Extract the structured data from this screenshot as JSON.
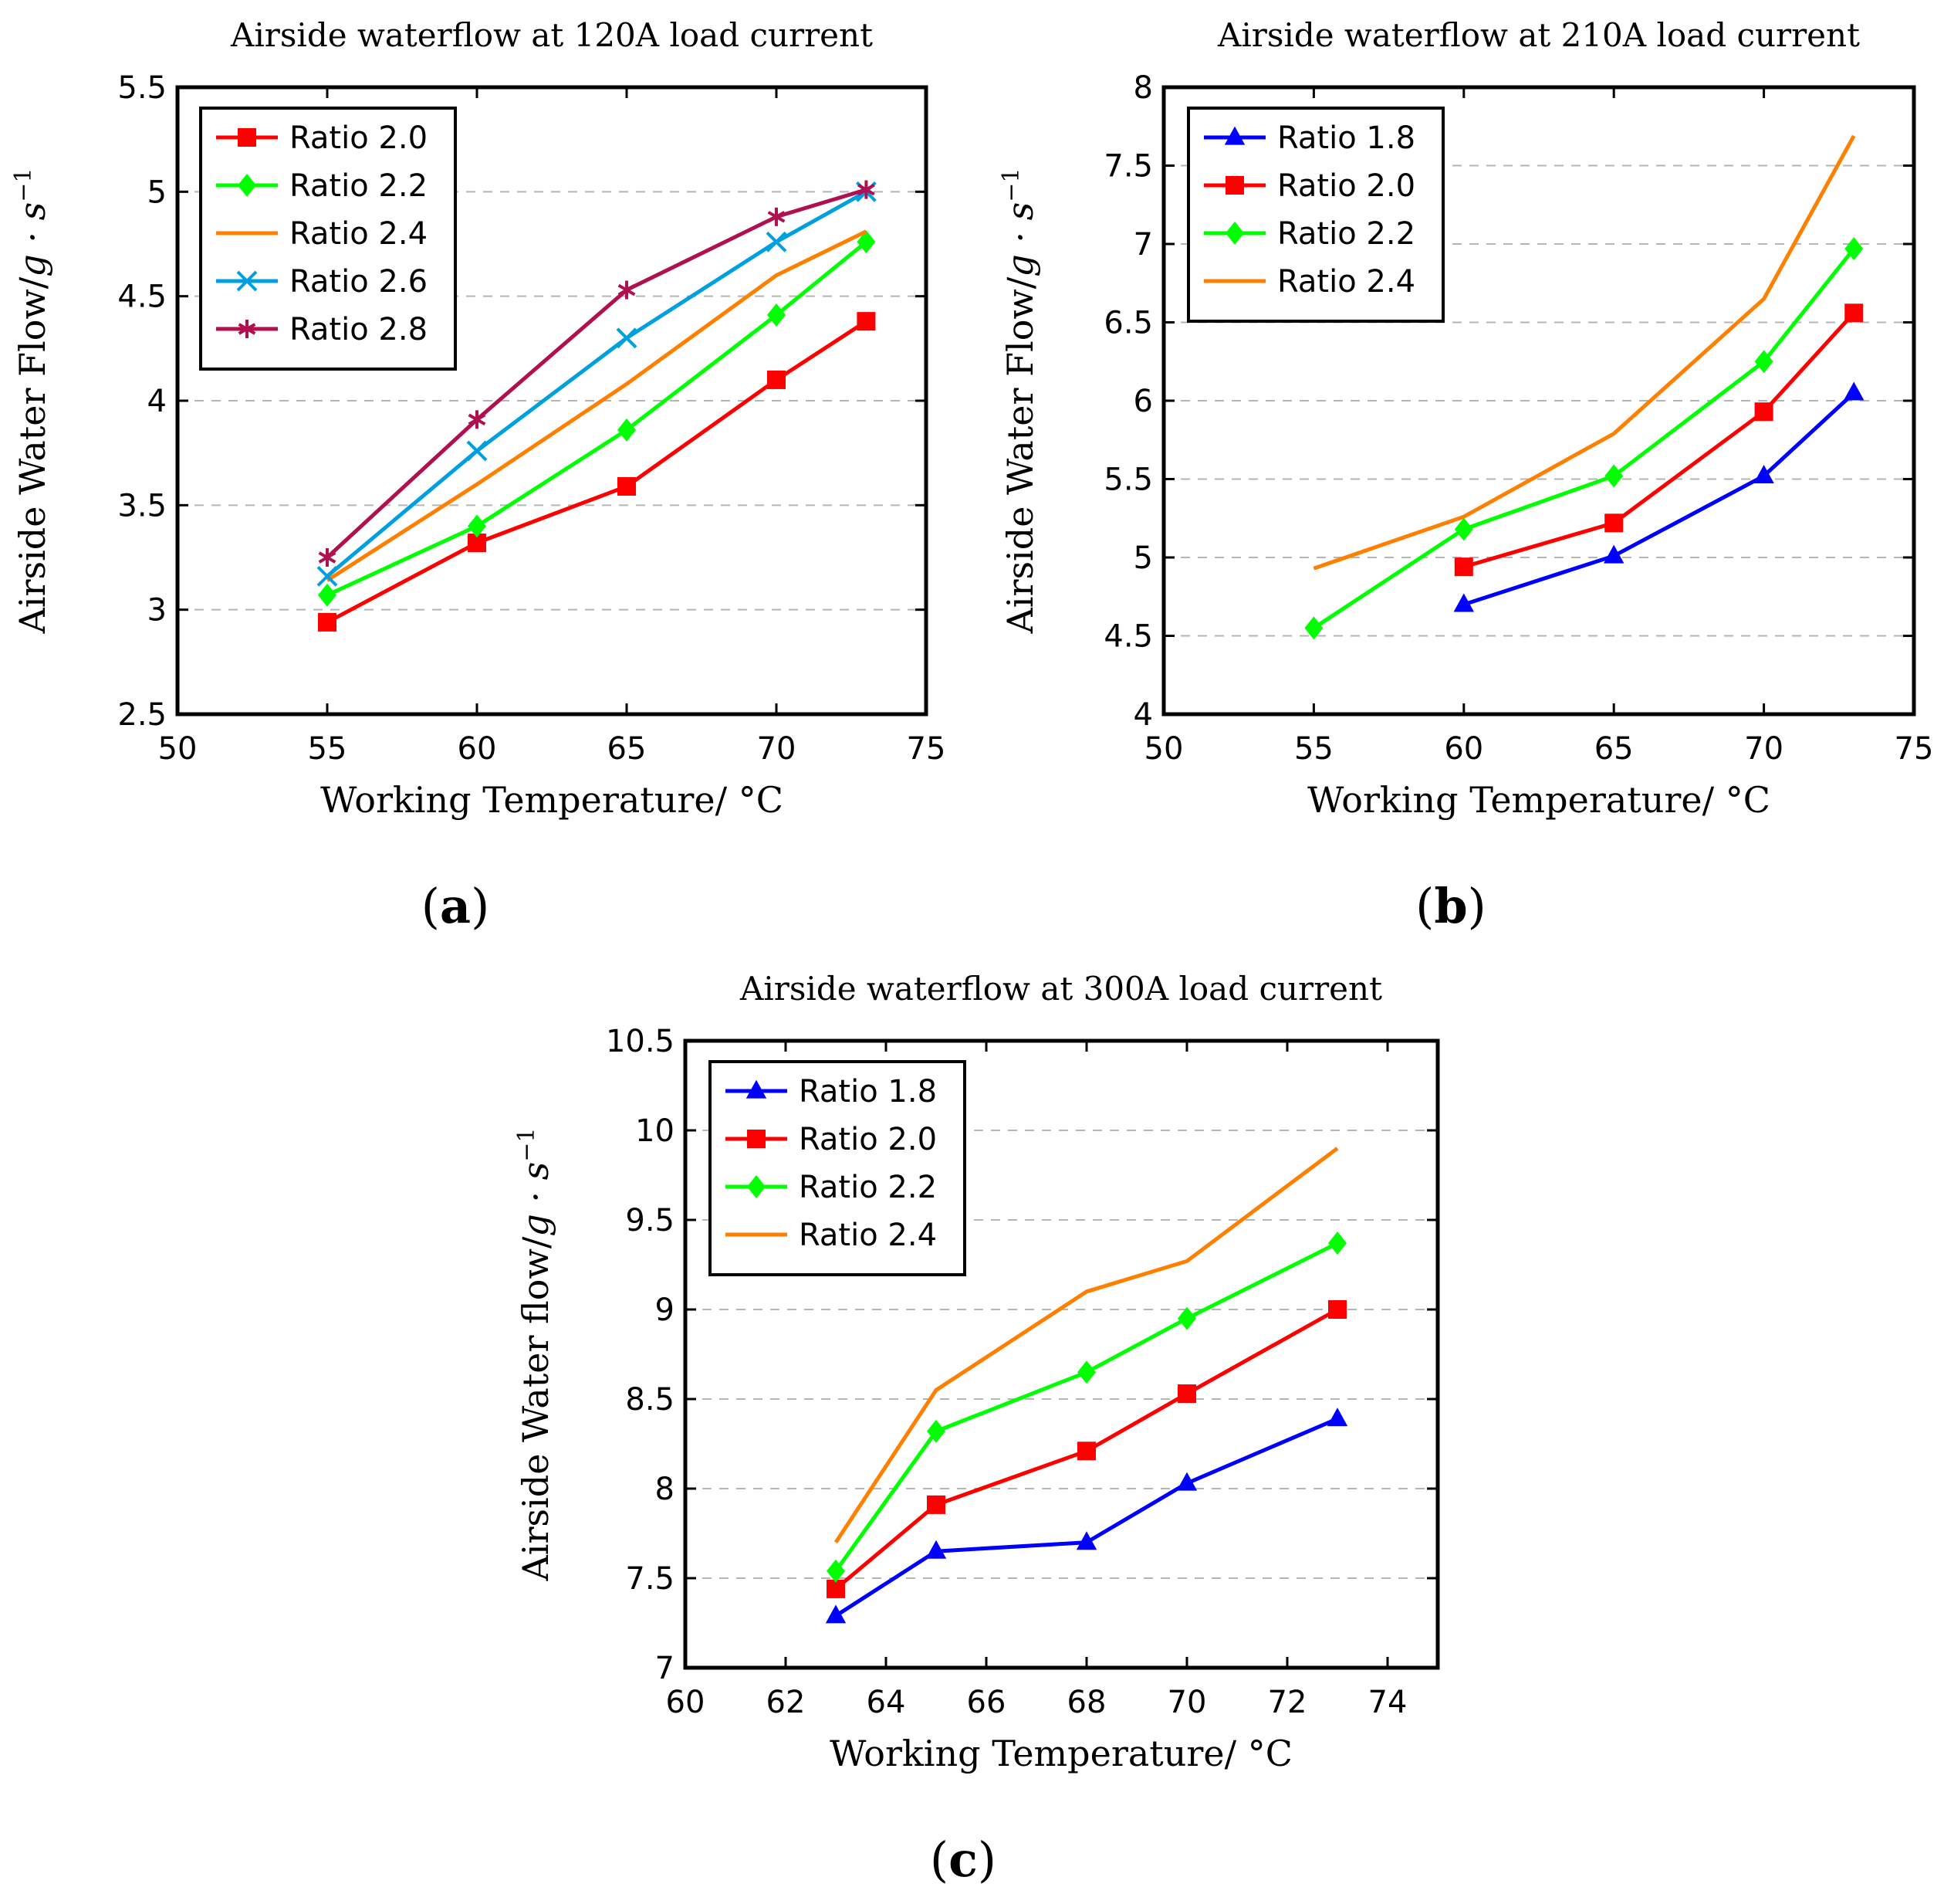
{
  "figure": {
    "panel_labels": [
      {
        "letter": "a"
      },
      {
        "letter": "b"
      },
      {
        "letter": "c"
      }
    ]
  },
  "colors": {
    "ratio_1_8": "#0000ff",
    "ratio_2_0": "#ff0000",
    "ratio_2_2": "#00ff00",
    "ratio_2_4": "#ff8000",
    "ratio_2_6": "#00a0e0",
    "ratio_2_8": "#b01050"
  },
  "chart_data": [
    {
      "id": "a",
      "type": "line",
      "title": "Airside waterflow at 120A load current",
      "xlabel": "Working Temperature/ °C",
      "ylabel_prefix": "Airside Water Flow/",
      "ylabel_math": "g · s",
      "ylabel_exp": "−1",
      "xlim": [
        50,
        75
      ],
      "ylim": [
        2.5,
        5.5
      ],
      "xticks": [
        50,
        55,
        60,
        65,
        70,
        75
      ],
      "yticks": [
        2.5,
        3,
        3.5,
        4,
        4.5,
        5,
        5.5
      ],
      "grid": "horizontal-dashed",
      "legend_position": "top-left",
      "series": [
        {
          "name": "Ratio 2.0",
          "color_key": "ratio_2_0",
          "marker": "square",
          "x": [
            55,
            60,
            65,
            70,
            73
          ],
          "y": [
            2.94,
            3.32,
            3.59,
            4.1,
            4.38
          ]
        },
        {
          "name": "Ratio 2.2",
          "color_key": "ratio_2_2",
          "marker": "diamond",
          "x": [
            55,
            60,
            65,
            70,
            73
          ],
          "y": [
            3.07,
            3.4,
            3.86,
            4.41,
            4.76
          ]
        },
        {
          "name": "Ratio 2.4",
          "color_key": "ratio_2_4",
          "marker": "none",
          "x": [
            55,
            60,
            65,
            70,
            73
          ],
          "y": [
            3.14,
            3.6,
            4.08,
            4.6,
            4.81
          ]
        },
        {
          "name": "Ratio 2.6",
          "color_key": "ratio_2_6",
          "marker": "x",
          "x": [
            55,
            60,
            65,
            70,
            73
          ],
          "y": [
            3.16,
            3.76,
            4.3,
            4.76,
            5.0
          ]
        },
        {
          "name": "Ratio 2.8",
          "color_key": "ratio_2_8",
          "marker": "star",
          "x": [
            55,
            60,
            65,
            70,
            73
          ],
          "y": [
            3.25,
            3.91,
            4.53,
            4.88,
            5.01
          ]
        }
      ]
    },
    {
      "id": "b",
      "type": "line",
      "title": "Airside waterflow at 210A load current",
      "xlabel": "Working Temperature/ °C",
      "ylabel_prefix": "Airside Water Flow/",
      "ylabel_math": "g · s",
      "ylabel_exp": "−1",
      "xlim": [
        50,
        75
      ],
      "ylim": [
        4,
        8
      ],
      "xticks": [
        50,
        55,
        60,
        65,
        70,
        75
      ],
      "yticks": [
        4,
        4.5,
        5,
        5.5,
        6,
        6.5,
        7,
        7.5,
        8
      ],
      "grid": "horizontal-dashed",
      "legend_position": "top-left",
      "series": [
        {
          "name": "Ratio 1.8",
          "color_key": "ratio_1_8",
          "marker": "triangle",
          "x": [
            60,
            65,
            70,
            73
          ],
          "y": [
            4.7,
            5.01,
            5.52,
            6.05
          ]
        },
        {
          "name": "Ratio 2.0",
          "color_key": "ratio_2_0",
          "marker": "square",
          "x": [
            60,
            65,
            70,
            73
          ],
          "y": [
            4.94,
            5.22,
            5.93,
            6.56
          ]
        },
        {
          "name": "Ratio 2.2",
          "color_key": "ratio_2_2",
          "marker": "diamond",
          "x": [
            55,
            60,
            65,
            70,
            73
          ],
          "y": [
            4.55,
            5.18,
            5.52,
            6.25,
            6.97
          ]
        },
        {
          "name": "Ratio 2.4",
          "color_key": "ratio_2_4",
          "marker": "none",
          "x": [
            55,
            60,
            65,
            70,
            73
          ],
          "y": [
            4.93,
            5.26,
            5.79,
            6.65,
            7.69
          ]
        }
      ]
    },
    {
      "id": "c",
      "type": "line",
      "title": "Airside waterflow at 300A load current",
      "xlabel": "Working Temperature/ °C",
      "ylabel_prefix": "Airside Water flow/",
      "ylabel_math": "g · s",
      "ylabel_exp": "−1",
      "xlim": [
        60,
        75
      ],
      "ylim": [
        7,
        10.5
      ],
      "xticks": [
        60,
        62,
        64,
        66,
        68,
        70,
        72,
        74
      ],
      "yticks": [
        7,
        7.5,
        8,
        8.5,
        9,
        9.5,
        10,
        10.5
      ],
      "grid": "horizontal-dashed",
      "legend_position": "top-left",
      "series": [
        {
          "name": "Ratio 1.8",
          "color_key": "ratio_1_8",
          "marker": "triangle",
          "x": [
            63,
            65,
            68,
            70,
            73
          ],
          "y": [
            7.29,
            7.65,
            7.7,
            8.03,
            8.39
          ]
        },
        {
          "name": "Ratio 2.0",
          "color_key": "ratio_2_0",
          "marker": "square",
          "x": [
            63,
            65,
            68,
            70,
            73
          ],
          "y": [
            7.44,
            7.91,
            8.21,
            8.53,
            9.0
          ]
        },
        {
          "name": "Ratio 2.2",
          "color_key": "ratio_2_2",
          "marker": "diamond",
          "x": [
            63,
            65,
            68,
            70,
            73
          ],
          "y": [
            7.54,
            8.32,
            8.65,
            8.95,
            9.37
          ]
        },
        {
          "name": "Ratio 2.4",
          "color_key": "ratio_2_4",
          "marker": "none",
          "x": [
            63,
            65,
            68,
            70,
            73
          ],
          "y": [
            7.7,
            8.55,
            9.1,
            9.27,
            9.9
          ]
        }
      ]
    }
  ]
}
